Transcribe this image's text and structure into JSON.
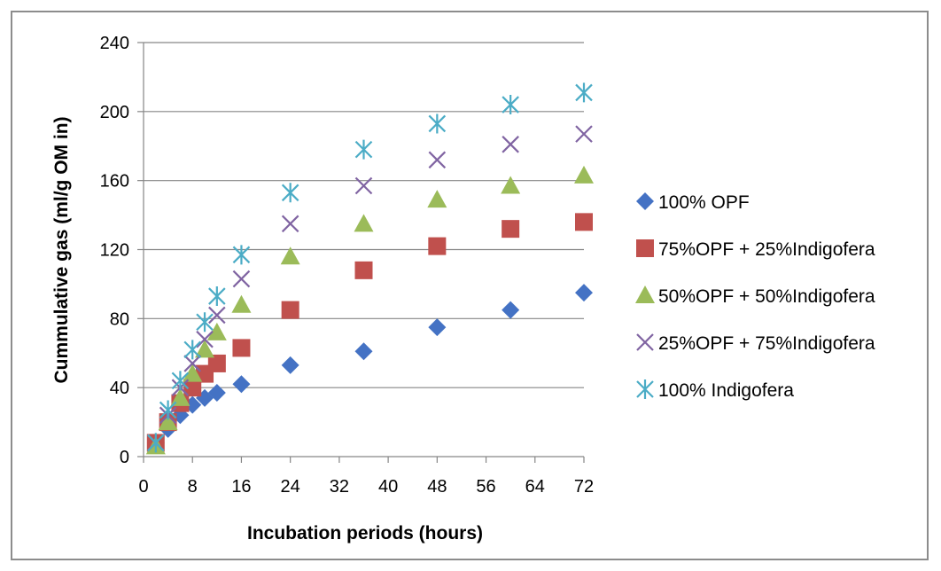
{
  "chart_data": {
    "type": "scatter",
    "xlabel": "Incubation periods (hours)",
    "ylabel": "Cummulative gas (ml/g OM in)",
    "xlim": [
      0,
      72
    ],
    "ylim": [
      0,
      240
    ],
    "xticks": [
      0,
      8,
      16,
      24,
      32,
      40,
      48,
      56,
      64,
      72
    ],
    "yticks": [
      0,
      40,
      80,
      120,
      160,
      200,
      240
    ],
    "grid": "horizontal",
    "legend_position": "right",
    "x": [
      2,
      4,
      6,
      8,
      10,
      12,
      16,
      24,
      36,
      48,
      60,
      72
    ],
    "series": [
      {
        "name": "100% OPF",
        "marker": "diamond",
        "color": "#4472c4",
        "values": [
          8,
          16,
          24,
          30,
          34,
          37,
          42,
          53,
          61,
          75,
          85,
          95
        ]
      },
      {
        "name": "75%OPF + 25%Indigofera",
        "marker": "square",
        "color": "#c0504d",
        "values": [
          8,
          20,
          31,
          40,
          48,
          54,
          63,
          85,
          108,
          122,
          132,
          136
        ]
      },
      {
        "name": "50%OPF + 50%Indigofera",
        "marker": "triangle",
        "color": "#9bbb59",
        "values": [
          6,
          20,
          34,
          48,
          62,
          72,
          88,
          116,
          135,
          149,
          157,
          163
        ]
      },
      {
        "name": "25%OPF + 75%Indigofera",
        "marker": "x",
        "color": "#8064a2",
        "values": [
          8,
          24,
          40,
          54,
          68,
          82,
          103,
          135,
          157,
          172,
          181,
          187
        ]
      },
      {
        "name": "100% Indigofera",
        "marker": "star",
        "color": "#4bacc6",
        "values": [
          8,
          27,
          44,
          62,
          78,
          93,
          117,
          153,
          178,
          193,
          204,
          211
        ]
      }
    ]
  }
}
